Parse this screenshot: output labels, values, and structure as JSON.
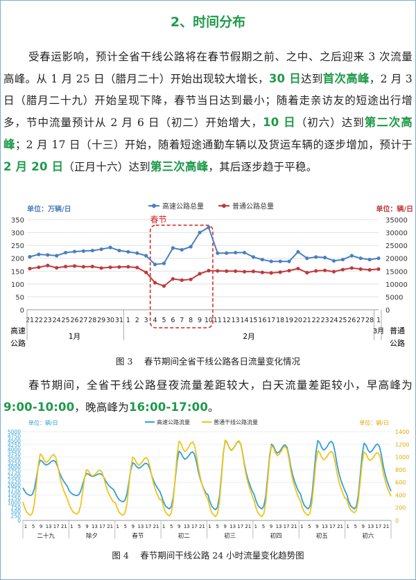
{
  "section_title": "2、时间分布",
  "para1": {
    "s1": "受春运影响，预计全省干线公路将在春节假期之前、之中、之后迎来 3 次流量高峰。从 1 月 25 日（腊月二十）开始出现较大增长，",
    "h1": "30 日",
    "s2": "达到",
    "h2": "首次高峰",
    "s3": "，2 月 3 日（腊月二十九）开始呈现下降，春节当日达到最小；随着走亲访友的短途出行增多，节中流量预计从 2 月 6 日（初二）开始增大，",
    "h3": "10 日",
    "s4": "（初六）达到",
    "h4": "第二次高峰",
    "s5": "；2 月 17 日（十三）开始，随着短途通勤车辆以及货运车辆的逐步增加，预计于",
    "h5": "2 月 20 日",
    "s6": "（正月十六）达到",
    "h6": "第三次高峰",
    "s7": "，其后逐步趋于平稳。"
  },
  "para2": {
    "s1": "春节期间，全省干线公路昼夜流量差距较大，白天流量差距较小，早高峰为",
    "h1": "9:00-10:00",
    "s2": "，晚高峰为",
    "h2": "16:00-17:00",
    "s3": "。"
  },
  "caption1": "图 3　 春节期间全省干线公路各日流量变化情况",
  "caption2": "图 4　 春节期间干线公路 24 小时流量变化趋势图",
  "chart_data": [
    {
      "type": "line",
      "left_unit": "单位：万辆/日",
      "right_unit": "单位：辆/日",
      "highlight_label": "春节",
      "left_ylim": [
        0,
        350
      ],
      "left_ticks": [
        0,
        50,
        100,
        150,
        200,
        250,
        300,
        350
      ],
      "right_ylim": [
        0,
        35000
      ],
      "right_ticks": [
        0,
        5000,
        10000,
        15000,
        20000,
        25000,
        30000,
        35000
      ],
      "x_ticks": [
        "21",
        "22",
        "23",
        "24",
        "25",
        "26",
        "27",
        "28",
        "29",
        "30",
        "31",
        "1",
        "2",
        "3",
        "4",
        "5",
        "6",
        "7",
        "8",
        "9",
        "10",
        "11",
        "12",
        "13",
        "14",
        "15",
        "16",
        "17",
        "18",
        "19",
        "20",
        "21",
        "22",
        "23",
        "24",
        "25",
        "26",
        "27",
        "28",
        "1"
      ],
      "x_left_label": [
        "高速",
        "公路"
      ],
      "x_right_label": [
        "普通",
        "公路"
      ],
      "month_labels": [
        "1月",
        "2月",
        "3月"
      ],
      "series": [
        {
          "name": "高速公路总量",
          "axis": "left",
          "color": "#4a7fc0",
          "values": [
            206,
            215,
            213,
            210,
            222,
            226,
            228,
            230,
            235,
            242,
            230,
            225,
            220,
            210,
            176,
            180,
            240,
            233,
            245,
            300,
            320,
            220,
            220,
            222,
            222,
            205,
            195,
            188,
            188,
            188,
            225,
            200,
            205,
            203,
            190,
            195,
            210,
            200,
            195,
            200
          ]
        },
        {
          "name": "普通公路总量",
          "axis": "right",
          "color": "#c0393b",
          "values": [
            16000,
            16500,
            17200,
            16300,
            16800,
            17000,
            16700,
            16800,
            16200,
            16500,
            16600,
            16700,
            16400,
            14500,
            10500,
            9200,
            12000,
            11500,
            11800,
            14000,
            15200,
            15100,
            15000,
            15000,
            14800,
            14900,
            14500,
            14300,
            14600,
            15200,
            16000,
            14400,
            15100,
            15300,
            14800,
            15600,
            16200,
            15800,
            15500,
            15800
          ]
        }
      ]
    },
    {
      "type": "line",
      "left_unit": "单位：辆/日",
      "right_unit": "单位：辆/日",
      "left_ylim": [
        0,
        5000
      ],
      "left_ticks": [
        0,
        250,
        500,
        750,
        1000,
        1250,
        1500,
        1750,
        2000,
        2250,
        2500,
        2750,
        3000,
        3250,
        3500,
        3750,
        4000,
        4250,
        4500,
        4750,
        5000
      ],
      "right_ylim": [
        0,
        1400
      ],
      "right_ticks": [
        0,
        200,
        400,
        600,
        800,
        1000,
        1200,
        1400
      ],
      "hour_ticks": [
        "1",
        "5",
        "9",
        "13",
        "17",
        "21"
      ],
      "day_labels": [
        "二十九",
        "除夕",
        "春节",
        "初二",
        "初三",
        "初四",
        "初五",
        "初六"
      ],
      "series": [
        {
          "name": "高速公路流量",
          "axis": "left",
          "color": "#2f9fd8",
          "day_peaks": [
            3400,
            2650,
            3250,
            3900,
            4500,
            4300,
            4500,
            4350
          ],
          "day_troughs": [
            1400,
            1400,
            1050,
            650,
            600,
            650,
            650,
            650
          ]
        },
        {
          "name": "普通干线公路流量",
          "axis": "right",
          "color": "#f0c419",
          "day_peaks": [
            1050,
            800,
            1000,
            1250,
            1270,
            1180,
            1100,
            1080
          ],
          "day_troughs": [
            80,
            100,
            80,
            70,
            60,
            60,
            80,
            120
          ]
        }
      ]
    }
  ]
}
